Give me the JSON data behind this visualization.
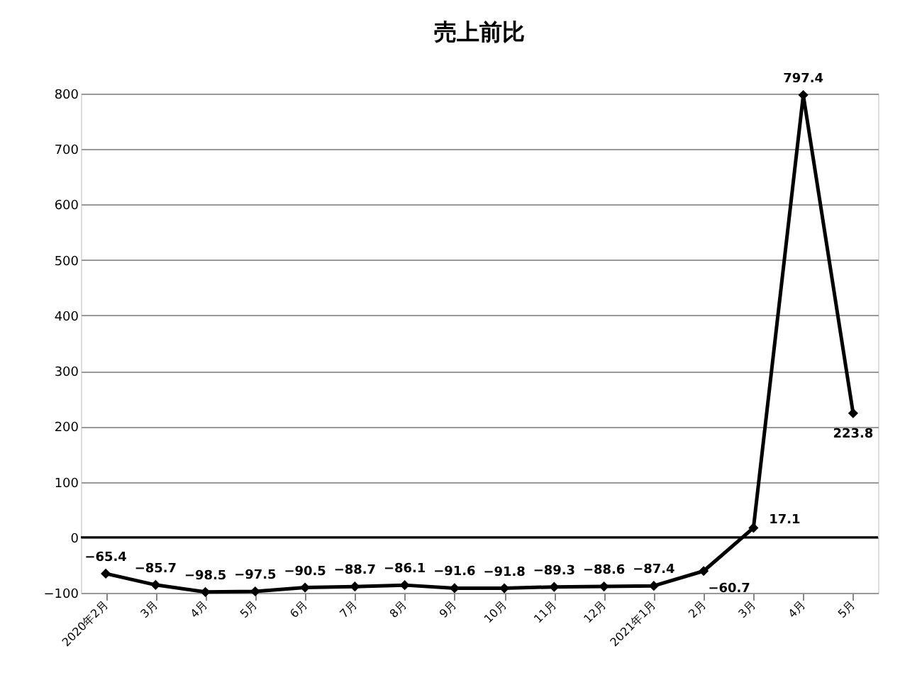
{
  "chart_data": {
    "type": "line",
    "title": "売上前比",
    "categories": [
      "2020年2月",
      "3月",
      "4月",
      "5月",
      "6月",
      "7月",
      "8月",
      "9月",
      "10月",
      "11月",
      "12月",
      "2021年1月",
      "2月",
      "3月",
      "4月",
      "5月"
    ],
    "series": [
      {
        "color": "#000000",
        "values": [
          -65.4,
          -85.7,
          -98.5,
          -97.5,
          -90.5,
          -88.7,
          -86.1,
          -91.6,
          -91.8,
          -89.3,
          -88.6,
          -87.4,
          -60.7,
          17.1,
          797.4,
          223.8
        ]
      }
    ],
    "ylim": [
      -100,
      800
    ],
    "yticks": [
      -100,
      0,
      100,
      200,
      300,
      400,
      500,
      600,
      700,
      800
    ],
    "grid": "y",
    "marker": "diamond",
    "line_style": "solid",
    "data_labels": true,
    "ref_lines": [
      {
        "axis": "y",
        "value": 0,
        "color": "#000000"
      }
    ]
  }
}
